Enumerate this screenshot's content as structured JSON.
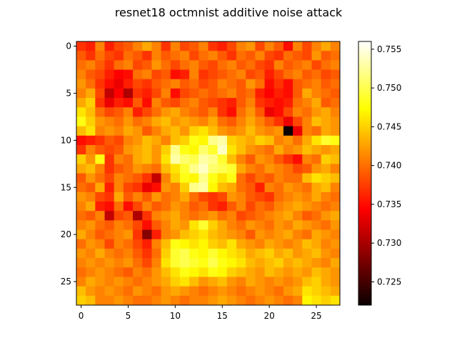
{
  "chart_data": {
    "type": "heatmap",
    "title": "resnet18 octmnist additive noise attack",
    "xlabel": "",
    "ylabel": "",
    "colormap": "hot",
    "rows": 28,
    "cols": 28,
    "x_ticks": [
      0,
      5,
      10,
      15,
      20,
      25
    ],
    "y_ticks": [
      0,
      5,
      10,
      15,
      20,
      25
    ],
    "xlim": [
      -0.5,
      27.5
    ],
    "ylim": [
      27.5,
      -0.5
    ],
    "colorbar": {
      "vmin": 0.722,
      "vmax": 0.756,
      "ticks": [
        0.725,
        0.73,
        0.735,
        0.74,
        0.745,
        0.75,
        0.755
      ],
      "tick_labels": [
        "0.725",
        "0.730",
        "0.735",
        "0.740",
        "0.745",
        "0.750",
        "0.755"
      ]
    },
    "values": [
      [
        0.737,
        0.736,
        0.741,
        0.736,
        0.738,
        0.739,
        0.741,
        0.743,
        0.741,
        0.737,
        0.741,
        0.738,
        0.739,
        0.741,
        0.737,
        0.736,
        0.738,
        0.741,
        0.742,
        0.738,
        0.741,
        0.739,
        0.735,
        0.741,
        0.738,
        0.741,
        0.743,
        0.741
      ],
      [
        0.739,
        0.737,
        0.74,
        0.738,
        0.737,
        0.74,
        0.739,
        0.737,
        0.741,
        0.739,
        0.74,
        0.741,
        0.738,
        0.74,
        0.741,
        0.739,
        0.737,
        0.74,
        0.739,
        0.741,
        0.738,
        0.737,
        0.74,
        0.739,
        0.738,
        0.742,
        0.739,
        0.74
      ],
      [
        0.74,
        0.741,
        0.739,
        0.737,
        0.74,
        0.741,
        0.738,
        0.739,
        0.742,
        0.74,
        0.738,
        0.74,
        0.741,
        0.739,
        0.738,
        0.74,
        0.741,
        0.739,
        0.74,
        0.738,
        0.737,
        0.741,
        0.739,
        0.74,
        0.741,
        0.738,
        0.74,
        0.741
      ],
      [
        0.741,
        0.739,
        0.738,
        0.736,
        0.734,
        0.735,
        0.74,
        0.741,
        0.738,
        0.739,
        0.735,
        0.736,
        0.741,
        0.737,
        0.738,
        0.739,
        0.74,
        0.741,
        0.738,
        0.739,
        0.736,
        0.738,
        0.74,
        0.741,
        0.739,
        0.74,
        0.738,
        0.739
      ],
      [
        0.742,
        0.74,
        0.737,
        0.735,
        0.733,
        0.736,
        0.738,
        0.737,
        0.739,
        0.74,
        0.741,
        0.739,
        0.74,
        0.738,
        0.739,
        0.741,
        0.74,
        0.739,
        0.742,
        0.74,
        0.735,
        0.737,
        0.735,
        0.739,
        0.74,
        0.741,
        0.739,
        0.74
      ],
      [
        0.741,
        0.743,
        0.738,
        0.731,
        0.734,
        0.73,
        0.737,
        0.736,
        0.738,
        0.741,
        0.735,
        0.738,
        0.739,
        0.74,
        0.739,
        0.74,
        0.741,
        0.739,
        0.74,
        0.736,
        0.734,
        0.736,
        0.735,
        0.739,
        0.743,
        0.741,
        0.74,
        0.739
      ],
      [
        0.743,
        0.745,
        0.737,
        0.733,
        0.736,
        0.735,
        0.739,
        0.735,
        0.741,
        0.739,
        0.738,
        0.74,
        0.741,
        0.739,
        0.738,
        0.737,
        0.736,
        0.739,
        0.741,
        0.737,
        0.736,
        0.735,
        0.736,
        0.74,
        0.741,
        0.743,
        0.739,
        0.74
      ],
      [
        0.746,
        0.744,
        0.74,
        0.738,
        0.739,
        0.741,
        0.736,
        0.738,
        0.74,
        0.742,
        0.743,
        0.741,
        0.74,
        0.739,
        0.741,
        0.737,
        0.735,
        0.74,
        0.742,
        0.739,
        0.733,
        0.735,
        0.738,
        0.741,
        0.74,
        0.742,
        0.743,
        0.741
      ],
      [
        0.748,
        0.745,
        0.742,
        0.741,
        0.74,
        0.742,
        0.74,
        0.741,
        0.743,
        0.744,
        0.742,
        0.743,
        0.742,
        0.741,
        0.743,
        0.74,
        0.739,
        0.741,
        0.743,
        0.741,
        0.739,
        0.737,
        0.733,
        0.738,
        0.741,
        0.744,
        0.743,
        0.742
      ],
      [
        0.744,
        0.746,
        0.741,
        0.742,
        0.741,
        0.743,
        0.742,
        0.739,
        0.741,
        0.743,
        0.744,
        0.742,
        0.745,
        0.746,
        0.744,
        0.742,
        0.741,
        0.742,
        0.744,
        0.742,
        0.741,
        0.742,
        0.722,
        0.733,
        0.741,
        0.74,
        0.743,
        0.742
      ],
      [
        0.735,
        0.736,
        0.737,
        0.739,
        0.738,
        0.741,
        0.742,
        0.744,
        0.743,
        0.741,
        0.744,
        0.745,
        0.748,
        0.747,
        0.752,
        0.753,
        0.745,
        0.744,
        0.743,
        0.745,
        0.744,
        0.741,
        0.742,
        0.74,
        0.743,
        0.746,
        0.749,
        0.748
      ],
      [
        0.737,
        0.741,
        0.739,
        0.738,
        0.739,
        0.742,
        0.743,
        0.744,
        0.742,
        0.745,
        0.752,
        0.748,
        0.747,
        0.751,
        0.749,
        0.754,
        0.746,
        0.744,
        0.742,
        0.741,
        0.74,
        0.743,
        0.741,
        0.742,
        0.744,
        0.743,
        0.742,
        0.743
      ],
      [
        0.745,
        0.742,
        0.748,
        0.737,
        0.741,
        0.74,
        0.743,
        0.744,
        0.742,
        0.746,
        0.753,
        0.751,
        0.75,
        0.753,
        0.752,
        0.749,
        0.744,
        0.741,
        0.739,
        0.742,
        0.741,
        0.739,
        0.737,
        0.735,
        0.741,
        0.74,
        0.745,
        0.744
      ],
      [
        0.743,
        0.744,
        0.741,
        0.737,
        0.739,
        0.74,
        0.742,
        0.741,
        0.74,
        0.744,
        0.746,
        0.749,
        0.752,
        0.754,
        0.751,
        0.75,
        0.749,
        0.743,
        0.741,
        0.74,
        0.742,
        0.741,
        0.74,
        0.738,
        0.739,
        0.742,
        0.743,
        0.741
      ],
      [
        0.739,
        0.742,
        0.74,
        0.738,
        0.741,
        0.74,
        0.739,
        0.737,
        0.731,
        0.741,
        0.745,
        0.748,
        0.747,
        0.752,
        0.748,
        0.746,
        0.748,
        0.74,
        0.738,
        0.74,
        0.739,
        0.741,
        0.74,
        0.74,
        0.744,
        0.746,
        0.745,
        0.744
      ],
      [
        0.74,
        0.739,
        0.743,
        0.736,
        0.741,
        0.738,
        0.737,
        0.733,
        0.735,
        0.742,
        0.741,
        0.745,
        0.752,
        0.753,
        0.747,
        0.744,
        0.743,
        0.74,
        0.739,
        0.736,
        0.741,
        0.74,
        0.742,
        0.741,
        0.74,
        0.743,
        0.744,
        0.741
      ],
      [
        0.742,
        0.741,
        0.738,
        0.737,
        0.743,
        0.739,
        0.741,
        0.739,
        0.742,
        0.74,
        0.741,
        0.743,
        0.74,
        0.738,
        0.737,
        0.738,
        0.742,
        0.741,
        0.739,
        0.738,
        0.737,
        0.74,
        0.741,
        0.742,
        0.741,
        0.743,
        0.741,
        0.74
      ],
      [
        0.741,
        0.743,
        0.736,
        0.735,
        0.74,
        0.735,
        0.738,
        0.741,
        0.739,
        0.74,
        0.742,
        0.741,
        0.739,
        0.74,
        0.737,
        0.736,
        0.739,
        0.741,
        0.738,
        0.74,
        0.739,
        0.741,
        0.742,
        0.743,
        0.742,
        0.741,
        0.74,
        0.741
      ],
      [
        0.74,
        0.739,
        0.741,
        0.731,
        0.738,
        0.739,
        0.73,
        0.737,
        0.741,
        0.742,
        0.743,
        0.741,
        0.74,
        0.741,
        0.742,
        0.74,
        0.741,
        0.738,
        0.739,
        0.74,
        0.741,
        0.742,
        0.743,
        0.741,
        0.739,
        0.74,
        0.742,
        0.743
      ],
      [
        0.741,
        0.742,
        0.74,
        0.739,
        0.741,
        0.74,
        0.738,
        0.735,
        0.739,
        0.741,
        0.743,
        0.742,
        0.746,
        0.749,
        0.745,
        0.743,
        0.741,
        0.74,
        0.742,
        0.741,
        0.74,
        0.742,
        0.741,
        0.743,
        0.742,
        0.741,
        0.74,
        0.742
      ],
      [
        0.743,
        0.741,
        0.739,
        0.74,
        0.741,
        0.742,
        0.737,
        0.728,
        0.736,
        0.741,
        0.742,
        0.744,
        0.745,
        0.746,
        0.744,
        0.743,
        0.742,
        0.741,
        0.739,
        0.742,
        0.741,
        0.742,
        0.743,
        0.741,
        0.74,
        0.743,
        0.742,
        0.741
      ],
      [
        0.74,
        0.742,
        0.741,
        0.738,
        0.741,
        0.74,
        0.738,
        0.736,
        0.741,
        0.744,
        0.748,
        0.747,
        0.746,
        0.747,
        0.745,
        0.744,
        0.746,
        0.743,
        0.742,
        0.741,
        0.743,
        0.742,
        0.741,
        0.742,
        0.744,
        0.743,
        0.741,
        0.742
      ],
      [
        0.742,
        0.741,
        0.743,
        0.741,
        0.74,
        0.741,
        0.739,
        0.737,
        0.74,
        0.745,
        0.749,
        0.75,
        0.748,
        0.747,
        0.749,
        0.747,
        0.746,
        0.745,
        0.743,
        0.744,
        0.745,
        0.743,
        0.744,
        0.742,
        0.743,
        0.744,
        0.742,
        0.741
      ],
      [
        0.741,
        0.742,
        0.741,
        0.742,
        0.741,
        0.742,
        0.74,
        0.738,
        0.741,
        0.746,
        0.749,
        0.75,
        0.749,
        0.748,
        0.75,
        0.748,
        0.747,
        0.746,
        0.744,
        0.743,
        0.744,
        0.745,
        0.743,
        0.744,
        0.743,
        0.742,
        0.741,
        0.743
      ],
      [
        0.74,
        0.741,
        0.742,
        0.741,
        0.74,
        0.739,
        0.741,
        0.74,
        0.742,
        0.744,
        0.746,
        0.748,
        0.747,
        0.746,
        0.748,
        0.747,
        0.745,
        0.744,
        0.743,
        0.742,
        0.744,
        0.743,
        0.742,
        0.743,
        0.742,
        0.744,
        0.743,
        0.742
      ],
      [
        0.741,
        0.743,
        0.742,
        0.741,
        0.742,
        0.741,
        0.74,
        0.741,
        0.742,
        0.743,
        0.745,
        0.746,
        0.744,
        0.742,
        0.743,
        0.744,
        0.742,
        0.741,
        0.743,
        0.742,
        0.741,
        0.742,
        0.741,
        0.742,
        0.744,
        0.745,
        0.743,
        0.742
      ],
      [
        0.744,
        0.742,
        0.741,
        0.742,
        0.741,
        0.74,
        0.742,
        0.741,
        0.74,
        0.742,
        0.743,
        0.742,
        0.741,
        0.74,
        0.741,
        0.742,
        0.741,
        0.74,
        0.741,
        0.742,
        0.741,
        0.74,
        0.742,
        0.743,
        0.746,
        0.745,
        0.744,
        0.743
      ],
      [
        0.745,
        0.744,
        0.741,
        0.741,
        0.742,
        0.741,
        0.74,
        0.74,
        0.741,
        0.742,
        0.741,
        0.74,
        0.741,
        0.741,
        0.742,
        0.743,
        0.742,
        0.741,
        0.74,
        0.741,
        0.742,
        0.741,
        0.74,
        0.741,
        0.747,
        0.746,
        0.745,
        0.746
      ]
    ]
  }
}
